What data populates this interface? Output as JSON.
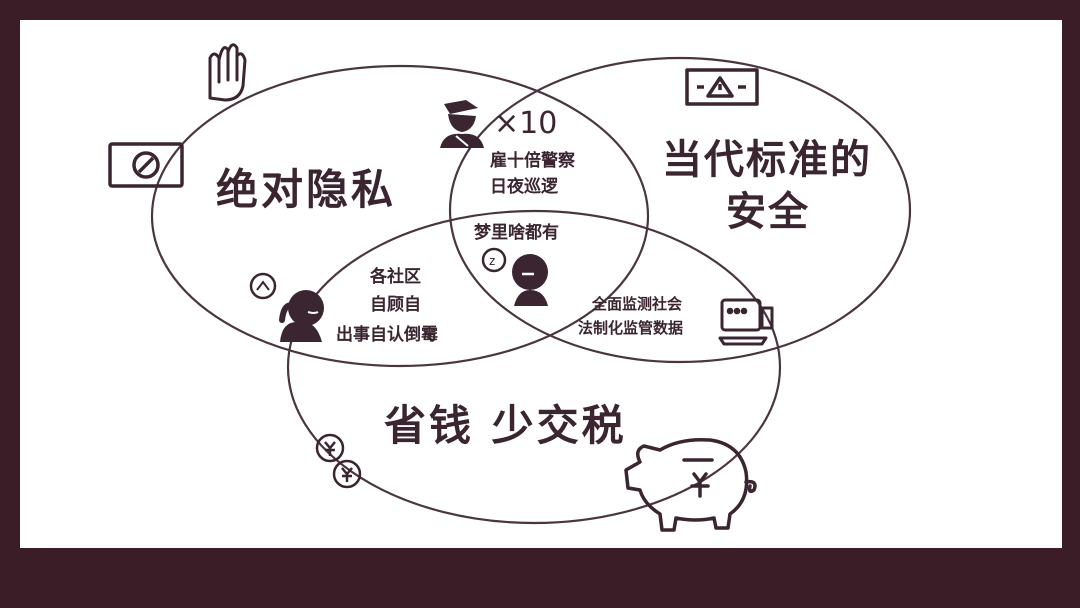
{
  "circles": {
    "privacy": "绝对隐私",
    "security_line1": "当代标准的",
    "security_line2": "安全",
    "cost": "省钱 少交税"
  },
  "overlaps": {
    "privacy_security_line1": "雇十倍警察",
    "privacy_security_line2": "日夜巡逻",
    "center": "梦里啥都有",
    "privacy_cost_line1": "各社区",
    "privacy_cost_line2": "自顾自",
    "privacy_cost_line3": "出事自认倒霉",
    "security_cost_line1": "全面监测社会",
    "security_cost_line2": "法制化监管数据"
  },
  "multiplier": "×10",
  "icons": {
    "stop_hand": "stop-hand-icon",
    "no_sign": "no-entry-sign-icon",
    "warning_sign": "warning-sign-icon",
    "police": "police-officer-icon",
    "sleeping": "sleeping-person-icon",
    "worried": "worried-person-icon",
    "computer": "computer-icon",
    "coins": "yen-coins-icon",
    "piggy_bank": "yen-piggy-bank-icon"
  },
  "colors": {
    "background": "#3b1d28",
    "canvas": "#ffffff",
    "ink": "#3a2530"
  }
}
